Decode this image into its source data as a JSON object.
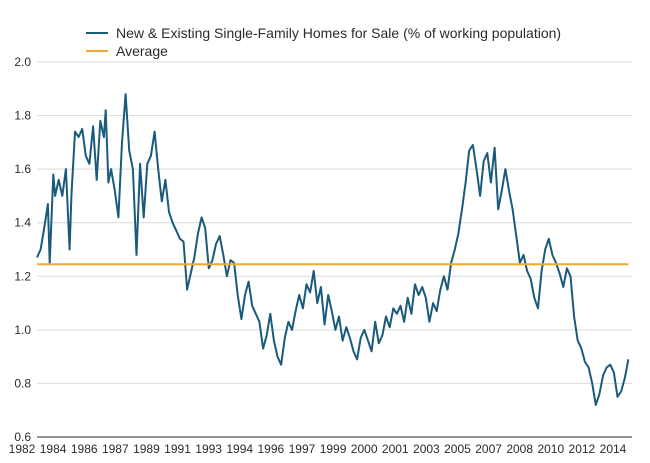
{
  "chart_data": {
    "type": "line",
    "title": "",
    "xlabel": "",
    "ylabel": "",
    "ylim": [
      0.6,
      2.0
    ],
    "xlim": [
      1982.0,
      2014.9
    ],
    "grid": "horizontal",
    "legend_position": "top-left",
    "x_tick_labels": [
      "1982",
      "1984",
      "1986",
      "1987",
      "1989",
      "1991",
      "1993",
      "1994",
      "1996",
      "1997",
      "1999",
      "2000",
      "2001",
      "2003",
      "2005",
      "2007",
      "2008",
      "2010",
      "2012",
      "2014"
    ],
    "y_tick_labels": [
      "0.6",
      "0.8",
      "1.0",
      "1.2",
      "1.4",
      "1.6",
      "1.8",
      "2.0"
    ],
    "y_ticks": [
      0.6,
      0.8,
      1.0,
      1.2,
      1.4,
      1.6,
      1.8,
      2.0
    ],
    "series": [
      {
        "name": "New & Existing Single-Family Homes for Sale (% of working population)",
        "color": "#1a5a7d",
        "x": [
          1982.0,
          1982.2,
          1982.4,
          1982.6,
          1982.7,
          1982.9,
          1983.0,
          1983.2,
          1983.4,
          1983.6,
          1983.8,
          1983.9,
          1984.1,
          1984.3,
          1984.5,
          1984.7,
          1984.9,
          1985.1,
          1985.3,
          1985.5,
          1985.7,
          1985.8,
          1985.95,
          1986.1,
          1986.3,
          1986.5,
          1986.7,
          1986.9,
          1987.1,
          1987.3,
          1987.5,
          1987.7,
          1987.9,
          1988.1,
          1988.3,
          1988.5,
          1988.7,
          1988.9,
          1989.1,
          1989.3,
          1989.5,
          1989.7,
          1989.9,
          1990.1,
          1990.3,
          1990.5,
          1990.7,
          1990.9,
          1991.1,
          1991.3,
          1991.5,
          1991.7,
          1991.9,
          1992.1,
          1992.3,
          1992.5,
          1992.7,
          1992.9,
          1993.1,
          1993.3,
          1993.5,
          1993.7,
          1993.9,
          1994.1,
          1994.3,
          1994.5,
          1994.7,
          1994.9,
          1995.1,
          1995.3,
          1995.5,
          1995.7,
          1995.9,
          1996.1,
          1996.3,
          1996.5,
          1996.7,
          1996.9,
          1997.1,
          1997.3,
          1997.5,
          1997.7,
          1997.9,
          1998.1,
          1998.3,
          1998.5,
          1998.7,
          1998.9,
          1999.1,
          1999.3,
          1999.5,
          1999.7,
          1999.9,
          2000.1,
          2000.3,
          2000.5,
          2000.7,
          2000.9,
          2001.1,
          2001.3,
          2001.5,
          2001.7,
          2001.9,
          2002.1,
          2002.3,
          2002.5,
          2002.7,
          2002.9,
          2003.1,
          2003.3,
          2003.5,
          2003.7,
          2003.9,
          2004.1,
          2004.3,
          2004.5,
          2004.7,
          2004.9,
          2005.1,
          2005.3,
          2005.5,
          2005.7,
          2005.9,
          2006.1,
          2006.3,
          2006.5,
          2006.7,
          2006.9,
          2007.1,
          2007.3,
          2007.5,
          2007.7,
          2007.9,
          2008.1,
          2008.3,
          2008.5,
          2008.7,
          2008.9,
          2009.1,
          2009.3,
          2009.5,
          2009.7,
          2009.9,
          2010.1,
          2010.3,
          2010.5,
          2010.7,
          2010.9,
          2011.1,
          2011.3,
          2011.5,
          2011.7,
          2011.9,
          2012.1,
          2012.3,
          2012.5,
          2012.7,
          2012.9,
          2013.1,
          2013.3,
          2013.5,
          2013.7,
          2013.9,
          2014.1,
          2014.3,
          2014.5,
          2014.7
        ],
        "values": [
          1.27,
          1.3,
          1.38,
          1.47,
          1.25,
          1.58,
          1.5,
          1.56,
          1.5,
          1.6,
          1.3,
          1.5,
          1.74,
          1.72,
          1.75,
          1.65,
          1.62,
          1.76,
          1.56,
          1.78,
          1.72,
          1.82,
          1.55,
          1.6,
          1.52,
          1.42,
          1.7,
          1.88,
          1.67,
          1.6,
          1.28,
          1.62,
          1.42,
          1.62,
          1.65,
          1.74,
          1.6,
          1.48,
          1.56,
          1.44,
          1.4,
          1.37,
          1.34,
          1.33,
          1.15,
          1.21,
          1.27,
          1.36,
          1.42,
          1.38,
          1.23,
          1.26,
          1.32,
          1.35,
          1.28,
          1.2,
          1.26,
          1.25,
          1.13,
          1.04,
          1.13,
          1.18,
          1.09,
          1.06,
          1.03,
          0.93,
          0.98,
          1.06,
          0.96,
          0.9,
          0.87,
          0.97,
          1.03,
          1.0,
          1.07,
          1.13,
          1.08,
          1.17,
          1.14,
          1.22,
          1.1,
          1.16,
          1.02,
          1.13,
          1.07,
          1.0,
          1.05,
          0.96,
          1.01,
          0.97,
          0.92,
          0.89,
          0.97,
          1.0,
          0.96,
          0.92,
          1.03,
          0.95,
          0.98,
          1.05,
          1.01,
          1.08,
          1.06,
          1.09,
          1.03,
          1.12,
          1.06,
          1.17,
          1.13,
          1.16,
          1.12,
          1.03,
          1.1,
          1.07,
          1.15,
          1.2,
          1.15,
          1.25,
          1.3,
          1.36,
          1.45,
          1.55,
          1.67,
          1.69,
          1.6,
          1.5,
          1.63,
          1.66,
          1.55,
          1.68,
          1.45,
          1.52,
          1.6,
          1.52,
          1.45,
          1.35,
          1.25,
          1.28,
          1.22,
          1.19,
          1.12,
          1.08,
          1.22,
          1.3,
          1.34,
          1.28,
          1.25,
          1.21,
          1.16,
          1.23,
          1.2,
          1.05,
          0.96,
          0.93,
          0.88,
          0.86,
          0.8,
          0.72,
          0.76,
          0.83,
          0.86,
          0.87,
          0.84,
          0.75,
          0.77,
          0.82,
          0.89
        ]
      },
      {
        "name": "Average",
        "color": "#f0a830",
        "x": [
          1982.0,
          2014.7
        ],
        "values": [
          1.245,
          1.245
        ]
      }
    ]
  },
  "colors": {
    "background": "#ffffff",
    "grid": "#d9d9d9",
    "axis_text": "#2b2b2b",
    "baseline": "#555555"
  }
}
